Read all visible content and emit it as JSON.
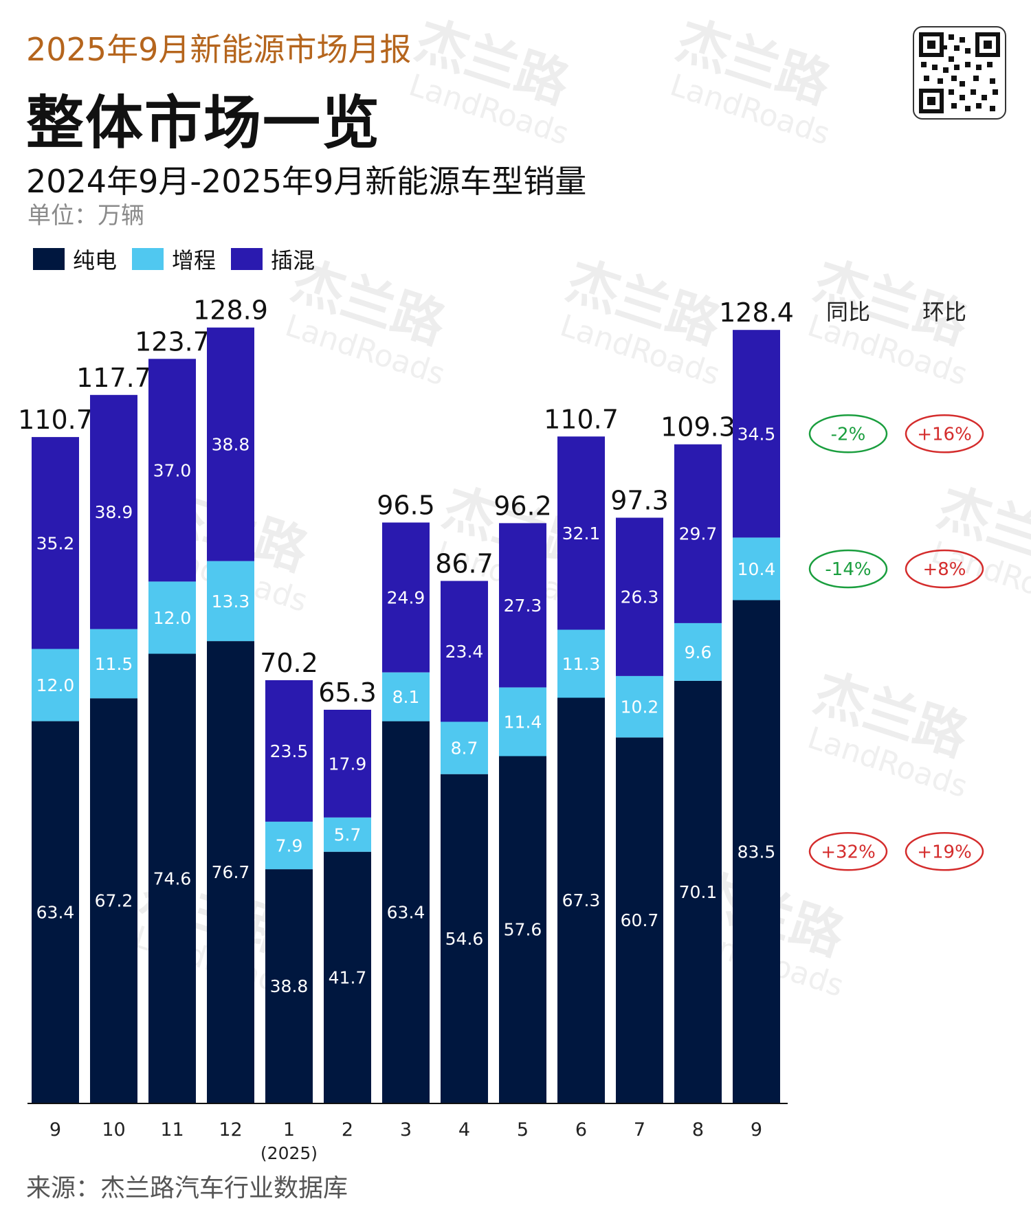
{
  "header": {
    "report_subtitle": "2025年9月新能源市场月报",
    "page_title": "整体市场一览",
    "chart_title": "2024年9月-2025年9月新能源车型销量",
    "unit": "单位：万辆"
  },
  "footer": {
    "source": "来源：杰兰路汽车行业数据库"
  },
  "watermark": {
    "cn": "杰兰路",
    "en": "LandRoads"
  },
  "colors": {
    "bev": "#00173f",
    "erev": "#50c8f0",
    "phev": "#2a1aaf",
    "negative": "#1a9e3e",
    "positive": "#d42c2c"
  },
  "chart_data": {
    "type": "bar",
    "stacked": true,
    "title": "2024年9月-2025年9月新能源车型销量",
    "ylabel": "万辆",
    "ylim": [
      0,
      128.9
    ],
    "categories": [
      "9",
      "10",
      "11",
      "12",
      "1",
      "2",
      "3",
      "4",
      "5",
      "6",
      "7",
      "8",
      "9"
    ],
    "category_sublabels": [
      "",
      "",
      "",
      "",
      "(2025)",
      "",
      "",
      "",
      "",
      "",
      "",
      "",
      ""
    ],
    "series": [
      {
        "name": "纯电",
        "color": "#00173f",
        "values": [
          63.4,
          67.2,
          74.6,
          76.7,
          38.8,
          41.7,
          63.4,
          54.6,
          57.6,
          67.3,
          60.7,
          70.1,
          83.5
        ]
      },
      {
        "name": "增程",
        "color": "#50c8f0",
        "values": [
          12.0,
          11.5,
          12.0,
          13.3,
          7.9,
          5.7,
          8.1,
          8.7,
          11.4,
          11.3,
          10.2,
          9.6,
          10.4
        ]
      },
      {
        "name": "插混",
        "color": "#2a1aaf",
        "values": [
          35.2,
          38.9,
          37.0,
          38.8,
          23.5,
          17.9,
          24.9,
          23.4,
          27.3,
          32.1,
          26.3,
          29.7,
          34.5
        ]
      }
    ],
    "totals": [
      110.7,
      117.7,
      123.7,
      128.9,
      70.2,
      65.3,
      96.5,
      86.7,
      96.2,
      110.7,
      97.3,
      109.3,
      128.4
    ],
    "legend": [
      "纯电",
      "增程",
      "插混"
    ],
    "change_headers": {
      "yoy": "同比",
      "mom": "环比"
    },
    "changes": [
      {
        "series": "插混",
        "yoy": "-2%",
        "mom": "+16%"
      },
      {
        "series": "增程",
        "yoy": "-14%",
        "mom": "+8%"
      },
      {
        "series": "纯电",
        "yoy": "+32%",
        "mom": "+19%"
      }
    ]
  }
}
